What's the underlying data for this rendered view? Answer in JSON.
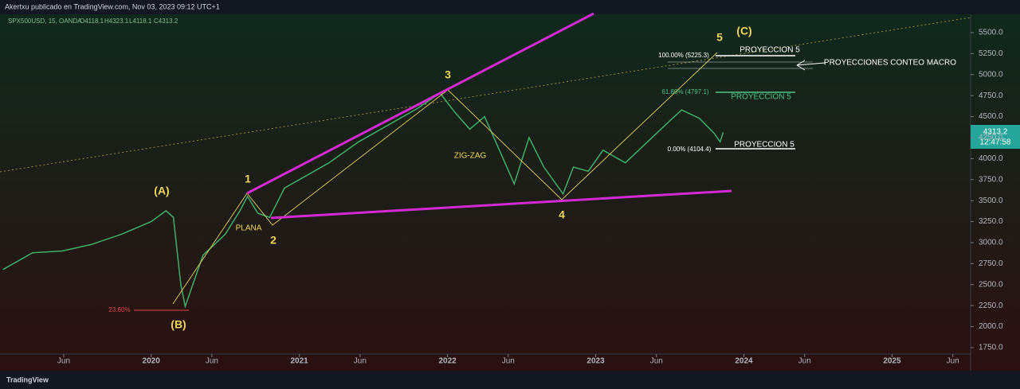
{
  "header": {
    "publisher": "Akertxu publicado en TradingView.com, Nov 03, 2023 09:12 UTC+1",
    "symbol": "SPX500USD, 15, OANDA",
    "ohlc": [
      "O4118.1",
      "H4323.1",
      "L4118.1",
      "C4313.2"
    ]
  },
  "price_tag": {
    "price": "4313.2",
    "countdown": "12:47:58"
  },
  "footer": {
    "brand": "TradingView"
  },
  "chart_data": {
    "type": "line",
    "color": "#3fae6a",
    "x": [
      2019.0,
      2019.2,
      2019.4,
      2019.6,
      2019.8,
      2020.0,
      2020.1,
      2020.15,
      2020.2,
      2020.23,
      2020.35,
      2020.5,
      2020.6,
      2020.65,
      2020.72,
      2020.8,
      2020.9,
      2021.0,
      2021.2,
      2021.4,
      2021.6,
      2021.8,
      2021.95,
      2022.05,
      2022.15,
      2022.25,
      2022.35,
      2022.45,
      2022.55,
      2022.65,
      2022.78,
      2022.85,
      2022.95,
      2023.05,
      2023.2,
      2023.35,
      2023.5,
      2023.58,
      2023.7,
      2023.8,
      2023.84,
      2023.86
    ],
    "values": [
      2680,
      2880,
      2900,
      2980,
      3100,
      3250,
      3380,
      3300,
      2500,
      2240,
      2850,
      3100,
      3380,
      3550,
      3350,
      3300,
      3650,
      3750,
      3950,
      4200,
      4400,
      4600,
      4780,
      4550,
      4350,
      4500,
      4100,
      3700,
      4250,
      3900,
      3580,
      3900,
      3850,
      4100,
      3950,
      4200,
      4450,
      4580,
      4480,
      4300,
      4200,
      4313
    ],
    "xlim": [
      2018.98,
      2025.53
    ],
    "ylim": [
      1674,
      5718
    ],
    "xticks": [
      {
        "value": 2019.41,
        "label": "Jun"
      },
      2020,
      {
        "value": 2020.41,
        "label": "Jun"
      },
      2021,
      {
        "value": 2021.41,
        "label": "Jun"
      },
      2022,
      {
        "value": 2022.41,
        "label": "Jun"
      },
      2023,
      {
        "value": 2023.41,
        "label": "Jun"
      },
      2024,
      {
        "value": 2024.41,
        "label": "Jun"
      },
      2025,
      {
        "value": 2025.41,
        "label": "Jun"
      }
    ],
    "yticks": [
      {
        "value": 1750,
        "label": "1750.0"
      },
      {
        "value": 2000,
        "label": "2000.0"
      },
      {
        "value": 2250,
        "label": "2250.0"
      },
      {
        "value": 2500,
        "label": "2500.0"
      },
      {
        "value": 2750,
        "label": "2750.0"
      },
      {
        "value": 3000,
        "label": "3000.0"
      },
      {
        "value": 3250,
        "label": "3250.0"
      },
      {
        "value": 3500,
        "label": "3500.0"
      },
      {
        "value": 3750,
        "label": "3750.0"
      },
      {
        "value": 4000,
        "label": "4000.0"
      },
      {
        "value": 4250,
        "label": "4250.0"
      },
      {
        "value": 4500,
        "label": "4500.0"
      },
      {
        "value": 4750,
        "label": "4750.0"
      },
      {
        "value": 5000,
        "label": "5000.0"
      },
      {
        "value": 5250,
        "label": "5250.0"
      },
      {
        "value": 5500,
        "label": "5500.0"
      }
    ],
    "annotations": [
      "(A)",
      "(B)",
      "1",
      "2",
      "3",
      "4",
      "5",
      "(C)",
      "PLANA",
      "ZIG-ZAG",
      "PROYECCION 5",
      "PROYECCION 5",
      "PROYECCION 5",
      "PROYECCIONES CONTEO MACRO",
      "100.00% (5225.3)",
      "61.80% (4797.1)",
      "0.00% (4104.4)",
      "23.60%"
    ]
  }
}
